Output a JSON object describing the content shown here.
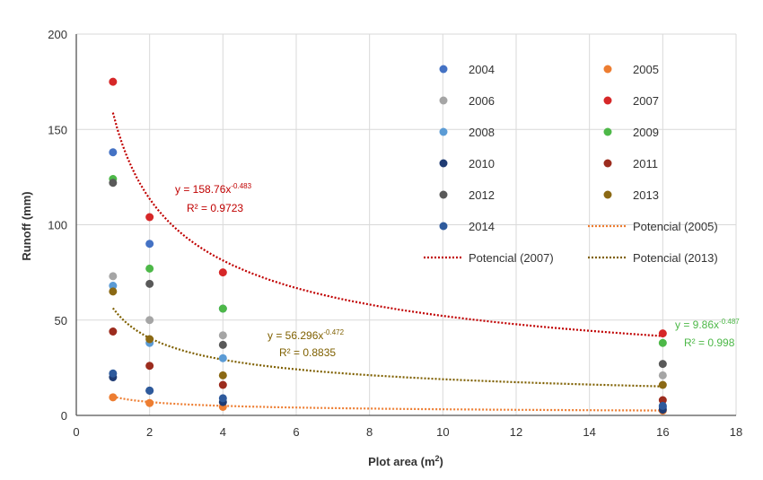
{
  "chart_data": {
    "type": "scatter",
    "xlabel": "Plot area (m",
    "xlabel_sup": "2",
    "xlabel_end": ")",
    "ylabel": "Runoff (mm)",
    "xlim": [
      0,
      18
    ],
    "ylim": [
      0,
      200
    ],
    "xticks": [
      0,
      2,
      4,
      6,
      8,
      10,
      12,
      14,
      16,
      18
    ],
    "yticks": [
      0,
      50,
      100,
      150,
      200
    ],
    "grid": true,
    "legend_placement": "top-right",
    "series": [
      {
        "name": "2004",
        "color": "#4472c4",
        "x": [
          1,
          2,
          4,
          16
        ],
        "y": [
          138,
          90,
          56,
          4
        ]
      },
      {
        "name": "2005",
        "color": "#ed7d31",
        "x": [
          1,
          2,
          4,
          16
        ],
        "y": [
          9.5,
          6.5,
          4.5,
          2.5
        ]
      },
      {
        "name": "2006",
        "color": "#a5a5a5",
        "x": [
          1,
          2,
          4,
          16
        ],
        "y": [
          73,
          50,
          42,
          21
        ]
      },
      {
        "name": "2007",
        "color": "#d62728",
        "x": [
          1,
          2,
          4,
          16
        ],
        "y": [
          175,
          104,
          75,
          43
        ]
      },
      {
        "name": "2008",
        "color": "#5b9bd5",
        "x": [
          1,
          2,
          4,
          16
        ],
        "y": [
          68,
          38,
          30,
          5
        ]
      },
      {
        "name": "2009",
        "color": "#4db848",
        "x": [
          1,
          2,
          4,
          16
        ],
        "y": [
          124,
          77,
          56,
          38
        ]
      },
      {
        "name": "2010",
        "color": "#1f3b73",
        "x": [
          1,
          2,
          4,
          16
        ],
        "y": [
          20,
          13,
          7,
          3
        ]
      },
      {
        "name": "2011",
        "color": "#9c2c1e",
        "x": [
          1,
          2,
          4,
          16
        ],
        "y": [
          44,
          26,
          16,
          8
        ]
      },
      {
        "name": "2012",
        "color": "#595959",
        "x": [
          1,
          2,
          4,
          16
        ],
        "y": [
          122,
          69,
          37,
          27
        ]
      },
      {
        "name": "2013",
        "color": "#8b6914",
        "x": [
          1,
          2,
          4,
          16
        ],
        "y": [
          65,
          40,
          21,
          16
        ]
      },
      {
        "name": "2014",
        "color": "#2e5a9c",
        "x": [
          1,
          2,
          4,
          16
        ],
        "y": [
          22,
          13,
          9,
          5
        ]
      }
    ],
    "trendlines": [
      {
        "name": "Potencial (2005)",
        "color": "#ed7d31",
        "a": 9.86,
        "b": -0.487,
        "x_range": [
          1,
          16
        ]
      },
      {
        "name": "Potencial (2007)",
        "color": "#c00000",
        "a": 158.76,
        "b": -0.483,
        "x_range": [
          1,
          16
        ]
      },
      {
        "name": "Potencial (2013)",
        "color": "#7f6000",
        "a": 56.296,
        "b": -0.472,
        "x_range": [
          1,
          16
        ]
      }
    ],
    "legend_order": [
      "2004",
      "2005",
      "2006",
      "2007",
      "2008",
      "2009",
      "2010",
      "2011",
      "2012",
      "2013",
      "2014",
      "Potencial (2005)",
      "Potencial (2007)",
      "Potencial (2013)"
    ],
    "annotations": [
      {
        "base": "y = 158.76x",
        "exp": "-0.483",
        "r2": "R² = 0.9723",
        "color": "#c00000"
      },
      {
        "base": "y = 56.296x",
        "exp": "-0.472",
        "r2": "R² = 0.8835",
        "color": "#7f6000"
      },
      {
        "base": "y = 9.86x",
        "exp": "-0.487",
        "r2": "R² = 0.998",
        "color": "#4db848"
      }
    ]
  }
}
